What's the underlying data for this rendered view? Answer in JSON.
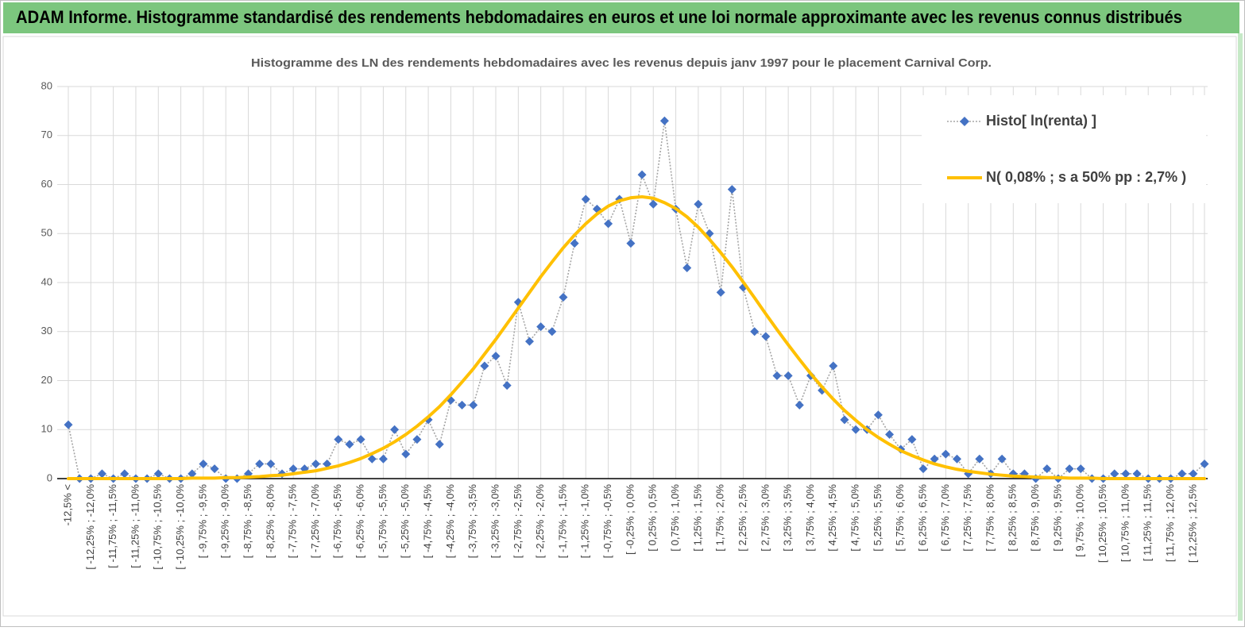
{
  "header": {
    "title": "ADAM Informe. Histogramme standardisé des rendements hebdomadaires en euros et une loi normale approximante avec les revenus connus distribués"
  },
  "chart_data": {
    "type": "line",
    "title": "Histogramme des LN des rendements hebdomadaires avec les revenus depuis janv 1997 pour le placement Carnival Corp.",
    "categories": [
      "-12,5% <",
      null,
      "[ -12,25% ; -12,0%",
      null,
      "[ -11,75% ; -11,5%",
      null,
      "[ -11,25% ; -11,0%",
      null,
      "[ -10,75% ; -10,5%",
      null,
      "[ -10,25% ; -10,0%",
      null,
      "[ -9,75% ; -9,5%",
      null,
      "[ -9,25% ; -9,0%",
      null,
      "[ -8,75% ; -8,5%",
      null,
      "[ -8,25% ; -8,0%",
      null,
      "[ -7,75% ; -7,5%",
      null,
      "[ -7,25% ; -7,0%",
      null,
      "[ -6,75% ; -6,5%",
      null,
      "[ -6,25% ; -6,0%",
      null,
      "[ -5,75% ; -5,5%",
      null,
      "[ -5,25% ; -5,0%",
      null,
      "[ -4,75% ; -4,5%",
      null,
      "[ -4,25% ; -4,0%",
      null,
      "[ -3,75% ; -3,5%",
      null,
      "[ -3,25% ; -3,0%",
      null,
      "[ -2,75% ; -2,5%",
      null,
      "[ -2,25% ; -2,0%",
      null,
      "[ -1,75% ; -1,5%",
      null,
      "[ -1,25% ; -1,0%",
      null,
      "[ -0,75% ; -0,5%",
      null,
      "[ -0,25% ; 0,0%",
      null,
      "[ 0,25% ; 0,5%",
      null,
      "[ 0,75% ; 1,0%",
      null,
      "[ 1,25% ; 1,5%",
      null,
      "[ 1,75% ; 2,0%",
      null,
      "[ 2,25% ; 2,5%",
      null,
      "[ 2,75% ; 3,0%",
      null,
      "[ 3,25% ; 3,5%",
      null,
      "[ 3,75% ; 4,0%",
      null,
      "[ 4,25% ; 4,5%",
      null,
      "[ 4,75% ; 5,0%",
      null,
      "[ 5,25% ; 5,5%",
      null,
      "[ 5,75% ; 6,0%",
      null,
      "[ 6,25% ; 6,5%",
      null,
      "[ 6,75% ; 7,0%",
      null,
      "[ 7,25% ; 7,5%",
      null,
      "[ 7,75% ; 8,0%",
      null,
      "[ 8,25% ; 8,5%",
      null,
      "[ 8,75% ; 9,0%",
      null,
      "[ 9,25% ; 9,5%",
      null,
      "[ 9,75% ; 10,0%",
      null,
      "[ 10,25% ; 10,5%",
      null,
      "[ 10,75% ; 11,0%",
      null,
      "[ 11,25% ; 11,5%",
      null,
      "[ 11,75% ; 12,0%",
      null,
      "[ 12,25% ; 12,5%",
      null
    ],
    "series": [
      {
        "name": "Histo[ ln(renta) ]",
        "color": "#4472c4",
        "line_color": "#a5a5a5",
        "style": "dotted-markers",
        "values": [
          11,
          0,
          0,
          1,
          0,
          1,
          0,
          0,
          1,
          0,
          0,
          1,
          3,
          2,
          0,
          0,
          1,
          3,
          3,
          1,
          2,
          2,
          3,
          3,
          8,
          7,
          8,
          4,
          4,
          10,
          5,
          8,
          12,
          7,
          16,
          15,
          15,
          23,
          25,
          19,
          36,
          28,
          31,
          30,
          37,
          48,
          57,
          55,
          52,
          57,
          48,
          62,
          56,
          73,
          55,
          43,
          56,
          50,
          38,
          59,
          39,
          30,
          29,
          21,
          21,
          15,
          21,
          18,
          23,
          12,
          10,
          10,
          13,
          9,
          6,
          8,
          2,
          4,
          5,
          4,
          1,
          4,
          1,
          4,
          1,
          1,
          0,
          2,
          0,
          2,
          2,
          0,
          0,
          1,
          1,
          1,
          0,
          0,
          0,
          1,
          1,
          3
        ]
      },
      {
        "name": "N( 0,08% ; s a 50% pp : 2,7% )",
        "color": "#ffc000",
        "style": "line",
        "values": [
          0,
          0,
          0,
          0,
          0,
          0,
          0,
          0,
          0,
          0,
          0,
          0.1,
          0.1,
          0.1,
          0.2,
          0.2,
          0.3,
          0.4,
          0.6,
          0.7,
          1.0,
          1.3,
          1.6,
          2.1,
          2.6,
          3.3,
          4.1,
          5.1,
          6.2,
          7.5,
          9.0,
          10.7,
          12.6,
          14.7,
          17.1,
          19.7,
          22.4,
          25.4,
          28.4,
          31.6,
          34.8,
          38.0,
          41.2,
          44.2,
          47.1,
          49.7,
          52.0,
          54.0,
          55.6,
          56.7,
          57.3,
          57.5,
          57.2,
          56.3,
          55.1,
          53.4,
          51.3,
          48.8,
          46.1,
          43.2,
          40.1,
          36.9,
          33.6,
          30.4,
          27.3,
          24.3,
          21.4,
          18.7,
          16.2,
          13.9,
          11.9,
          10.0,
          8.4,
          7.0,
          5.7,
          4.7,
          3.8,
          3.0,
          2.4,
          1.9,
          1.5,
          1.2,
          0.9,
          0.7,
          0.5,
          0.4,
          0.3,
          0.2,
          0.2,
          0.1,
          0.1,
          0.1,
          0,
          0,
          0,
          0,
          0,
          0,
          0,
          0,
          0,
          0
        ]
      }
    ],
    "ylim": [
      0,
      80
    ],
    "yticks": [
      0,
      10,
      20,
      30,
      40,
      50,
      60,
      70,
      80
    ],
    "grid": true,
    "legend": "top-right"
  }
}
